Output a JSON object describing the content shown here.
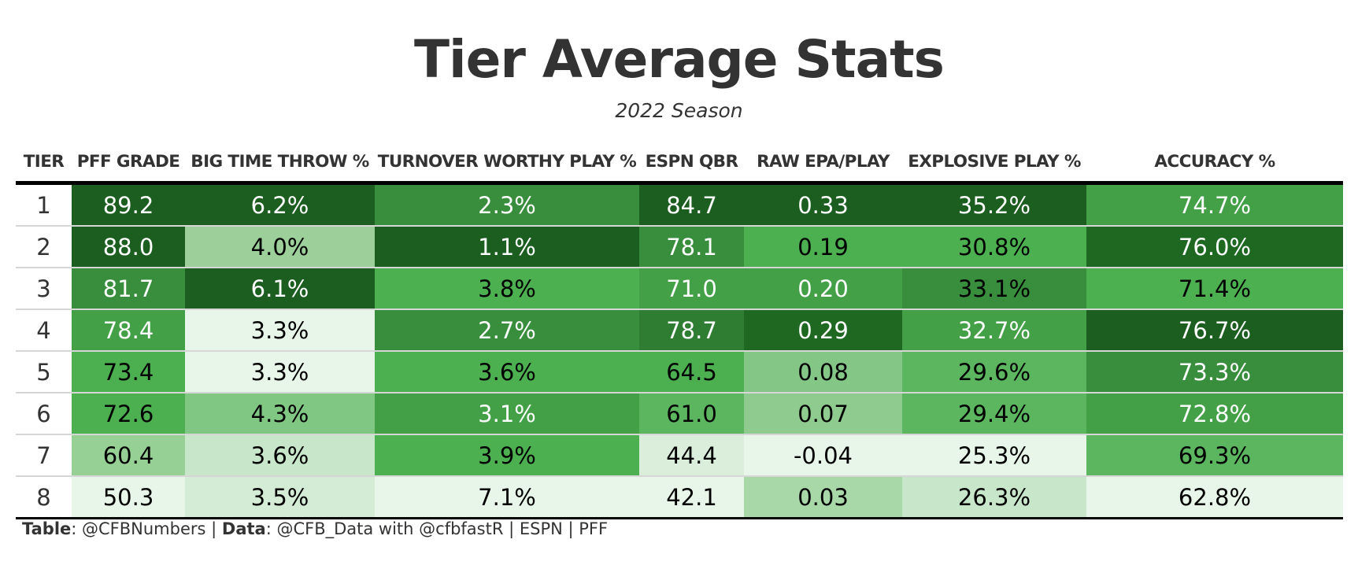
{
  "title": "Tier Average Stats",
  "subtitle": "2022 Season",
  "caption": {
    "table_label": "Table",
    "table_value": ": @CFBNumbers | ",
    "data_label": "Data",
    "data_value": ": @CFB_Data with @cfbfastR | ESPN | PFF"
  },
  "chart_data": {
    "type": "table",
    "columns": [
      "TIER",
      "PFF GRADE",
      "BIG TIME THROW %",
      "TURNOVER WORTHY PLAY %",
      "ESPN QBR",
      "RAW EPA/PLAY",
      "EXPLOSIVE PLAY %",
      "ACCURACY %"
    ],
    "rows": [
      [
        "1",
        "89.2",
        "6.2%",
        "2.3%",
        "84.7",
        "0.33",
        "35.2%",
        "74.7%"
      ],
      [
        "2",
        "88.0",
        "4.0%",
        "1.1%",
        "78.1",
        "0.19",
        "30.8%",
        "76.0%"
      ],
      [
        "3",
        "81.7",
        "6.1%",
        "3.8%",
        "71.0",
        "0.20",
        "33.1%",
        "71.4%"
      ],
      [
        "4",
        "78.4",
        "3.3%",
        "2.7%",
        "78.7",
        "0.29",
        "32.7%",
        "76.7%"
      ],
      [
        "5",
        "73.4",
        "3.3%",
        "3.6%",
        "64.5",
        "0.08",
        "29.6%",
        "73.3%"
      ],
      [
        "6",
        "72.6",
        "4.3%",
        "3.1%",
        "61.0",
        "0.07",
        "29.4%",
        "72.8%"
      ],
      [
        "7",
        "60.4",
        "3.6%",
        "3.9%",
        "44.4",
        "-0.04",
        "25.3%",
        "69.3%"
      ],
      [
        "8",
        "50.3",
        "3.5%",
        "7.1%",
        "42.1",
        "0.03",
        "26.3%",
        "62.8%"
      ]
    ],
    "cell_colors": [
      [
        null,
        "#1b5e20",
        "#1b5e20",
        "#388e3c",
        "#1b5e20",
        "#1b5e20",
        "#1b5e20",
        "#43a047"
      ],
      [
        null,
        "#1b5e20",
        "#9ccf9a",
        "#1b5e20",
        "#388e3c",
        "#4caf50",
        "#4caf50",
        "#1e6822"
      ],
      [
        null,
        "#388e3c",
        "#1b5e20",
        "#4caf50",
        "#43a047",
        "#43a047",
        "#388e3c",
        "#4caf50"
      ],
      [
        null,
        "#43a047",
        "#e8f5e9",
        "#388e3c",
        "#2e7d32",
        "#1e6822",
        "#43a047",
        "#1b5e20"
      ],
      [
        null,
        "#4caf50",
        "#e8f5e9",
        "#4caf50",
        "#4caf50",
        "#84c686",
        "#5cb660",
        "#388e3c"
      ],
      [
        null,
        "#4caf50",
        "#81c784",
        "#43a047",
        "#5cb660",
        "#8fcb8e",
        "#5cb660",
        "#43a047"
      ],
      [
        null,
        "#97d095",
        "#c8e6c9",
        "#4caf50",
        "#dbeedc",
        "#e8f5e9",
        "#e8f5e9",
        "#5cb660"
      ],
      [
        null,
        "#e8f5e9",
        "#d4ebd5",
        "#e8f5e9",
        "#e8f5e9",
        "#a9d8a8",
        "#c8e6c9",
        "#e8f5e9"
      ]
    ],
    "text_colors": [
      [
        null,
        "#ffffff",
        "#ffffff",
        "#ffffff",
        "#ffffff",
        "#ffffff",
        "#ffffff",
        "#ffffff"
      ],
      [
        null,
        "#ffffff",
        "#000000",
        "#ffffff",
        "#ffffff",
        "#000000",
        "#000000",
        "#ffffff"
      ],
      [
        null,
        "#ffffff",
        "#ffffff",
        "#000000",
        "#ffffff",
        "#ffffff",
        "#000000",
        "#000000"
      ],
      [
        null,
        "#ffffff",
        "#000000",
        "#ffffff",
        "#ffffff",
        "#ffffff",
        "#ffffff",
        "#ffffff"
      ],
      [
        null,
        "#000000",
        "#000000",
        "#000000",
        "#000000",
        "#000000",
        "#000000",
        "#ffffff"
      ],
      [
        null,
        "#000000",
        "#000000",
        "#ffffff",
        "#000000",
        "#000000",
        "#000000",
        "#ffffff"
      ],
      [
        null,
        "#000000",
        "#000000",
        "#000000",
        "#000000",
        "#000000",
        "#000000",
        "#000000"
      ],
      [
        null,
        "#000000",
        "#000000",
        "#000000",
        "#000000",
        "#000000",
        "#000000",
        "#000000"
      ]
    ]
  }
}
